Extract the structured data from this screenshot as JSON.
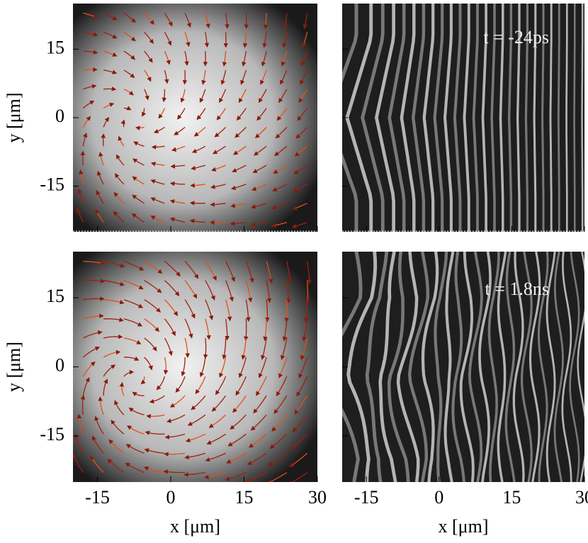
{
  "axes": {
    "xlim": [
      -20,
      30
    ],
    "xticks": [
      -15,
      0,
      15,
      30
    ],
    "ylim": [
      -25,
      25
    ],
    "yticks": [
      -15,
      0,
      15
    ],
    "xlabel": "x [μm]",
    "ylabel": "y [μm]"
  },
  "rows": [
    {
      "label": "t = -24ps"
    },
    {
      "label": "t = 1.8ns"
    }
  ]
}
